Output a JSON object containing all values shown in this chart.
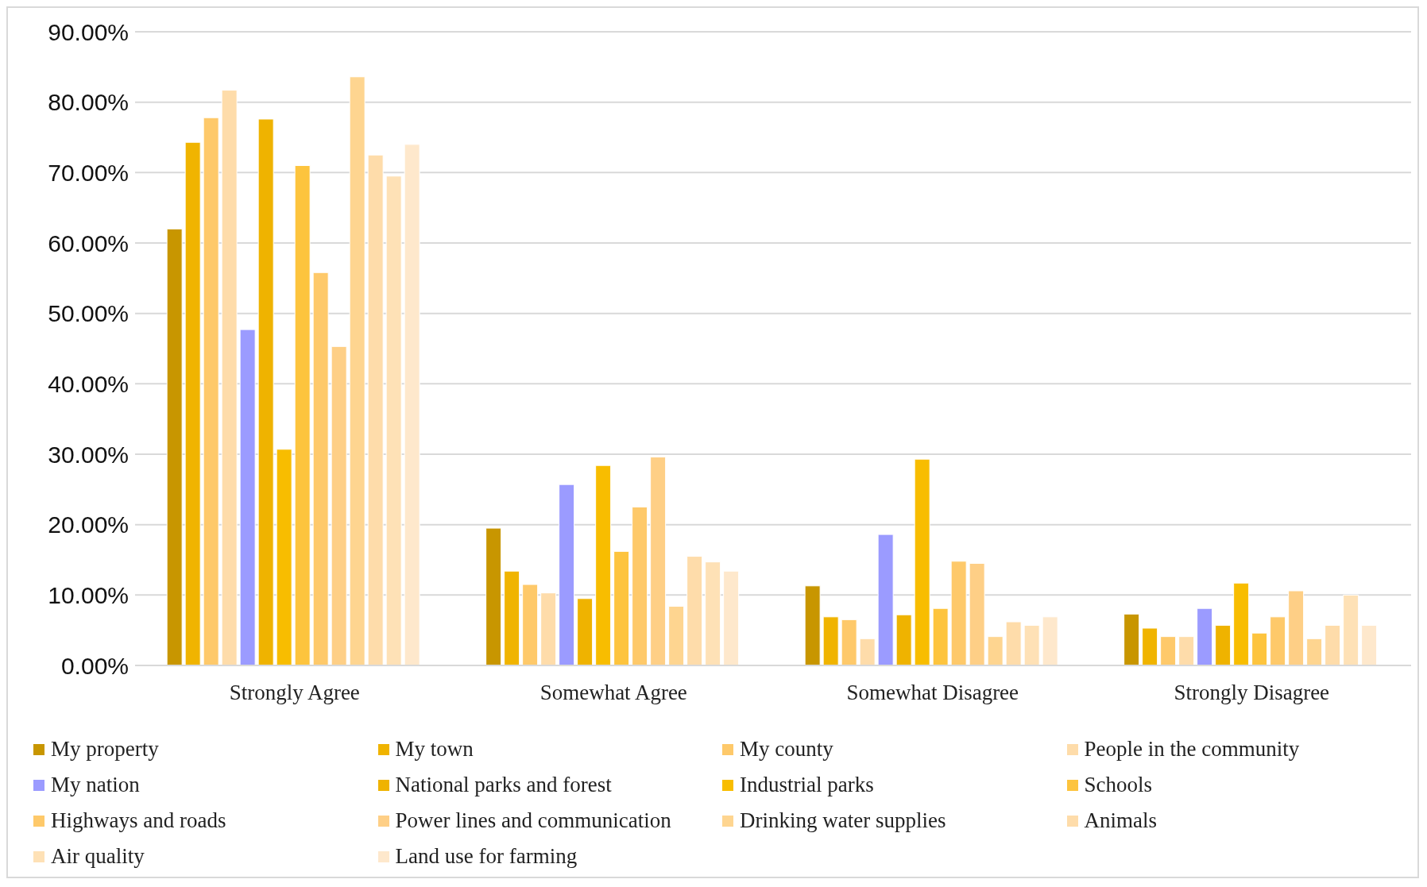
{
  "chart_data": {
    "type": "bar",
    "categories": [
      "Strongly Agree",
      "Somewhat Agree",
      "Somewhat Disagree",
      "Strongly Disagree"
    ],
    "series": [
      {
        "name": "My property",
        "color": "#c89600",
        "values": [
          62.0,
          19.5,
          11.3,
          7.3
        ]
      },
      {
        "name": "My town",
        "color": "#f0b400",
        "values": [
          74.3,
          13.4,
          6.9,
          5.3
        ]
      },
      {
        "name": "My county",
        "color": "#fec96a",
        "values": [
          77.8,
          11.5,
          6.5,
          4.1
        ]
      },
      {
        "name": "People in the community",
        "color": "#fedcaa",
        "values": [
          81.7,
          10.3,
          3.8,
          4.1
        ]
      },
      {
        "name": "My nation",
        "color": "#9b9bff",
        "values": [
          47.7,
          25.7,
          18.6,
          8.1
        ]
      },
      {
        "name": "National parks and forest",
        "color": "#efb300",
        "values": [
          77.6,
          9.5,
          7.2,
          5.7
        ]
      },
      {
        "name": "Industrial parks",
        "color": "#f8bd00",
        "values": [
          30.7,
          28.4,
          29.3,
          11.7
        ]
      },
      {
        "name": "Schools",
        "color": "#fdc43e",
        "values": [
          71.0,
          16.2,
          8.1,
          4.6
        ]
      },
      {
        "name": "Highways and roads",
        "color": "#fec96a",
        "values": [
          55.8,
          22.5,
          14.8,
          6.9
        ]
      },
      {
        "name": "Power lines and communication",
        "color": "#fecf86",
        "values": [
          45.3,
          29.6,
          14.5,
          10.6
        ]
      },
      {
        "name": "Drinking water supplies",
        "color": "#fed590",
        "values": [
          83.6,
          8.4,
          4.1,
          3.8
        ]
      },
      {
        "name": "Animals",
        "color": "#fedcaa",
        "values": [
          72.5,
          15.5,
          6.2,
          5.7
        ]
      },
      {
        "name": "Air quality",
        "color": "#fee1b6",
        "values": [
          69.5,
          14.7,
          5.7,
          10.0
        ]
      },
      {
        "name": "Land use for farming",
        "color": "#fee8cc",
        "values": [
          74.0,
          13.4,
          6.9,
          5.7
        ]
      }
    ],
    "ylim": [
      0,
      90
    ],
    "yticks": [
      {
        "value": 0,
        "label": "0.00%"
      },
      {
        "value": 10,
        "label": "10.00%"
      },
      {
        "value": 20,
        "label": "20.00%"
      },
      {
        "value": 30,
        "label": "30.00%"
      },
      {
        "value": 40,
        "label": "40.00%"
      },
      {
        "value": 50,
        "label": "50.00%"
      },
      {
        "value": 60,
        "label": "60.00%"
      },
      {
        "value": 70,
        "label": "70.00%"
      },
      {
        "value": 80,
        "label": "80.00%"
      },
      {
        "value": 90,
        "label": "90.00%"
      }
    ],
    "grid": "y",
    "legend": "bottom"
  }
}
